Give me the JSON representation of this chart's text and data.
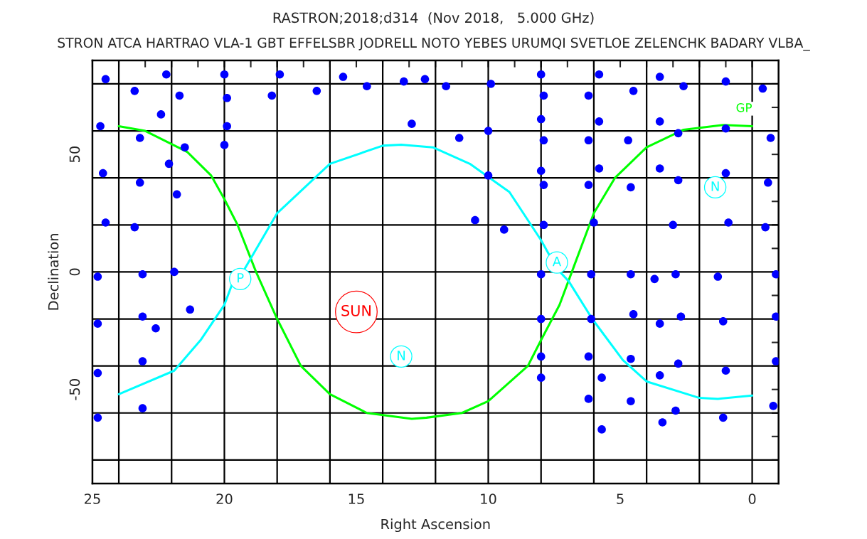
{
  "chart_data": {
    "type": "scatter",
    "title": "RASTRON;2018;d314  (Nov 2018,   5.000 GHz)",
    "subtitle": "STRON ATCA HARTRAO VLA-1 GBT EFFELSBR JODRELL NOTO YEBES URUMQI SVETLOE ZELENCHK BADARY VLBA_",
    "xlabel": "Right Ascension",
    "ylabel": "Declination",
    "xlim": [
      25,
      -1
    ],
    "ylim": [
      -90,
      90
    ],
    "xticks": [
      25,
      {
        "value": 24,
        "label": null
      },
      {
        "value": 23,
        "label": null
      },
      {
        "value": 22,
        "label": null
      },
      {
        "value": 21,
        "label": null
      },
      20,
      {
        "value": 19,
        "label": null
      },
      {
        "value": 18,
        "label": null
      },
      {
        "value": 17,
        "label": null
      },
      {
        "value": 16,
        "label": null
      },
      15,
      {
        "value": 14,
        "label": null
      },
      {
        "value": 13,
        "label": null
      },
      {
        "value": 12,
        "label": null
      },
      {
        "value": 11,
        "label": null
      },
      10,
      {
        "value": 9,
        "label": null
      },
      {
        "value": 8,
        "label": null
      },
      {
        "value": 7,
        "label": null
      },
      {
        "value": 6,
        "label": null
      },
      5,
      {
        "value": 4,
        "label": null
      },
      {
        "value": 3,
        "label": null
      },
      {
        "value": 2,
        "label": null
      },
      {
        "value": 1,
        "label": null
      },
      0
    ],
    "yticks": [
      {
        "value": -80,
        "label": null
      },
      {
        "value": -70,
        "label": null
      },
      {
        "value": -60,
        "label": null
      },
      -50,
      {
        "value": -40,
        "label": null
      },
      {
        "value": -30,
        "label": null
      },
      {
        "value": -20,
        "label": null
      },
      {
        "value": -10,
        "label": null
      },
      0,
      {
        "value": 10,
        "label": null
      },
      {
        "value": 20,
        "label": null
      },
      {
        "value": 30,
        "label": null
      },
      {
        "value": 40,
        "label": null
      },
      50,
      {
        "value": 60,
        "label": null
      },
      {
        "value": 70,
        "label": null
      },
      {
        "value": 80,
        "label": null
      }
    ],
    "grid": false,
    "legend": false,
    "ref_lines": [
      {
        "axis": "x",
        "value": 24,
        "color": "#000000"
      },
      {
        "axis": "x",
        "value": 22,
        "color": "#000000"
      },
      {
        "axis": "x",
        "value": 20,
        "color": "#000000"
      },
      {
        "axis": "x",
        "value": 18,
        "color": "#000000"
      },
      {
        "axis": "x",
        "value": 16,
        "color": "#000000"
      },
      {
        "axis": "x",
        "value": 14,
        "color": "#000000"
      },
      {
        "axis": "x",
        "value": 12,
        "color": "#000000"
      },
      {
        "axis": "x",
        "value": 10,
        "color": "#000000"
      },
      {
        "axis": "x",
        "value": 8,
        "color": "#000000"
      },
      {
        "axis": "x",
        "value": 6,
        "color": "#000000"
      },
      {
        "axis": "x",
        "value": 4,
        "color": "#000000"
      },
      {
        "axis": "x",
        "value": 2,
        "color": "#000000"
      },
      {
        "axis": "x",
        "value": 0,
        "color": "#000000"
      },
      {
        "axis": "y",
        "value": 80,
        "color": "#000000"
      },
      {
        "axis": "y",
        "value": 60,
        "color": "#000000"
      },
      {
        "axis": "y",
        "value": 40,
        "color": "#000000"
      },
      {
        "axis": "y",
        "value": 20,
        "color": "#000000"
      },
      {
        "axis": "y",
        "value": 0,
        "color": "#000000"
      },
      {
        "axis": "y",
        "value": -20,
        "color": "#000000"
      },
      {
        "axis": "y",
        "value": -40,
        "color": "#000000"
      },
      {
        "axis": "y",
        "value": -60,
        "color": "#000000"
      },
      {
        "axis": "y",
        "value": -80,
        "color": "#000000"
      }
    ],
    "series": [
      {
        "color": "#0000ff",
        "marker": "circle",
        "x": [
          24.5,
          23.4,
          22.2,
          21.7,
          20.0,
          19.9,
          19.9,
          20.0,
          17.9,
          18.2,
          16.5,
          15.5,
          14.6,
          13.2,
          12.4,
          12.9,
          24.7,
          22.4,
          23.2,
          21.5,
          22.1,
          24.6,
          23.2,
          21.8,
          24.5,
          23.4,
          24.8,
          23.1,
          21.9,
          21.3,
          23.1,
          24.8,
          22.6,
          23.1,
          24.8,
          23.1,
          24.8,
          11.6,
          9.9,
          8.0,
          7.9,
          5.8,
          6.2,
          4.5,
          3.5,
          2.6,
          1.0,
          -0.4,
          10.0,
          11.1,
          8.0,
          7.9,
          5.8,
          6.2,
          4.7,
          3.5,
          2.8,
          1.0,
          -0.7,
          10.0,
          8.0,
          7.9,
          5.8,
          6.2,
          4.6,
          3.5,
          2.8,
          1.0,
          -0.6,
          10.5,
          9.4,
          7.9,
          6.0,
          3.0,
          0.9,
          -0.5,
          8.0,
          6.1,
          4.6,
          3.7,
          2.9,
          1.3,
          -0.9,
          8.0,
          6.1,
          4.5,
          3.5,
          2.7,
          1.1,
          -0.9,
          8.0,
          8.0,
          6.2,
          5.7,
          4.6,
          3.5,
          2.8,
          1.0,
          -0.9,
          6.2,
          4.6,
          3.4,
          2.9,
          1.1,
          -0.8,
          5.7
        ],
        "values": [
          82,
          77,
          84,
          75,
          84,
          74,
          62,
          54,
          84,
          75,
          77,
          83,
          79,
          81,
          82,
          63,
          62,
          67,
          57,
          53,
          46,
          42,
          38,
          33,
          21,
          19,
          -2,
          -1,
          0,
          -16,
          -19,
          -22,
          -24,
          -38,
          -43,
          -58,
          -62,
          79,
          80,
          84,
          75,
          84,
          75,
          77,
          83,
          79,
          81,
          78,
          60,
          57,
          65,
          56,
          64,
          56,
          56,
          64,
          59,
          61,
          57,
          41,
          43,
          37,
          44,
          37,
          36,
          44,
          39,
          42,
          38,
          22,
          18,
          20,
          21,
          20,
          21,
          19,
          -1,
          -1,
          -1,
          -3,
          -1,
          -2,
          -1,
          -20,
          -20,
          -18,
          -22,
          -19,
          -21,
          -19,
          -36,
          -45,
          -36,
          -45,
          -37,
          -44,
          -39,
          -42,
          -38,
          -54,
          -55,
          -64,
          -59,
          -62,
          -57,
          -67
        ]
      },
      {
        "type": "line",
        "name": "GP",
        "color": "#00ff00",
        "x": [
          24,
          23.0,
          21.4,
          20.5,
          20.0,
          19.5,
          18.8,
          18.0,
          17.1,
          16.0,
          14.6,
          12.9,
          12.34,
          11.0,
          10.0,
          8.5,
          8.0,
          7.3,
          6.8,
          6.0,
          5.2,
          4.0,
          2.6,
          1.1,
          0.0
        ],
        "values": [
          62,
          60,
          51,
          41,
          31,
          20,
          0,
          -20,
          -40,
          -52,
          -60,
          -62.5,
          -62,
          -60,
          -55,
          -40,
          -29,
          -14,
          1,
          25,
          40,
          53,
          60.5,
          62.5,
          62
        ]
      },
      {
        "type": "line",
        "color": "#00ffff",
        "x": [
          24,
          21.9,
          20.9,
          20.0,
          19.6,
          19.3,
          18.0,
          16.0,
          14.0,
          13.3,
          12.1,
          10.7,
          9.2,
          8.0,
          7.4,
          6.95,
          6.06,
          4.9,
          4.0,
          2.0,
          1.3,
          0.0
        ],
        "values": [
          -52,
          -42,
          -29,
          -14,
          -2,
          0,
          25,
          46,
          53.7,
          54.1,
          53,
          46,
          34,
          13.5,
          1.4,
          -4,
          -20,
          -37.5,
          -46.6,
          -53.6,
          -54,
          -52.6
        ]
      },
      {
        "color": "#00ffff",
        "marker": "circle",
        "x": [
          19.4,
          7.4,
          13.3,
          1.4
        ],
        "values": [
          -3,
          4,
          -36,
          36
        ],
        "value_labels": [
          "P",
          "A",
          "N",
          "N"
        ]
      },
      {
        "color": "#ff0000",
        "marker": "circle",
        "x": [
          15.0
        ],
        "values": [
          -17
        ],
        "value_labels": [
          "SUN"
        ]
      }
    ]
  }
}
